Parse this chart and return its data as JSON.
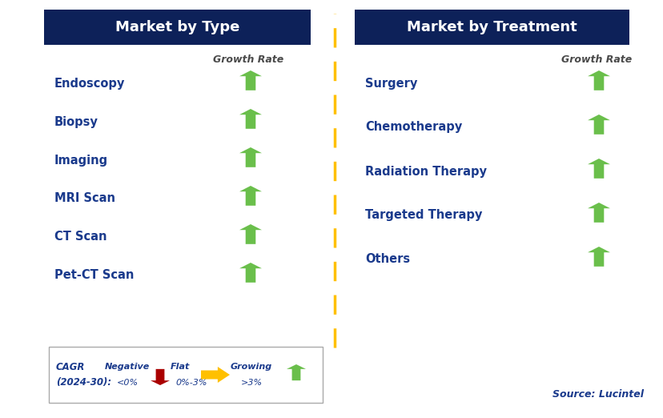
{
  "title_left": "Market by Type",
  "title_right": "Market by Treatment",
  "header_color": "#0d2159",
  "header_text_color": "#ffffff",
  "label_color": "#1a3a8c",
  "growth_rate_color": "#4a4a4a",
  "left_items": [
    "Endoscopy",
    "Biopsy",
    "Imaging",
    "MRI Scan",
    "CT Scan",
    "Pet-CT Scan"
  ],
  "right_items": [
    "Surgery",
    "Chemotherapy",
    "Radiation Therapy",
    "Targeted Therapy",
    "Others"
  ],
  "arrow_up_color": "#6abf4b",
  "arrow_down_color": "#aa0000",
  "arrow_flat_color": "#ffc000",
  "dashed_line_color": "#ffc000",
  "background_color": "#ffffff",
  "source_text": "Source: Lucintel",
  "fig_width": 8.29,
  "fig_height": 5.22,
  "dpi": 100
}
